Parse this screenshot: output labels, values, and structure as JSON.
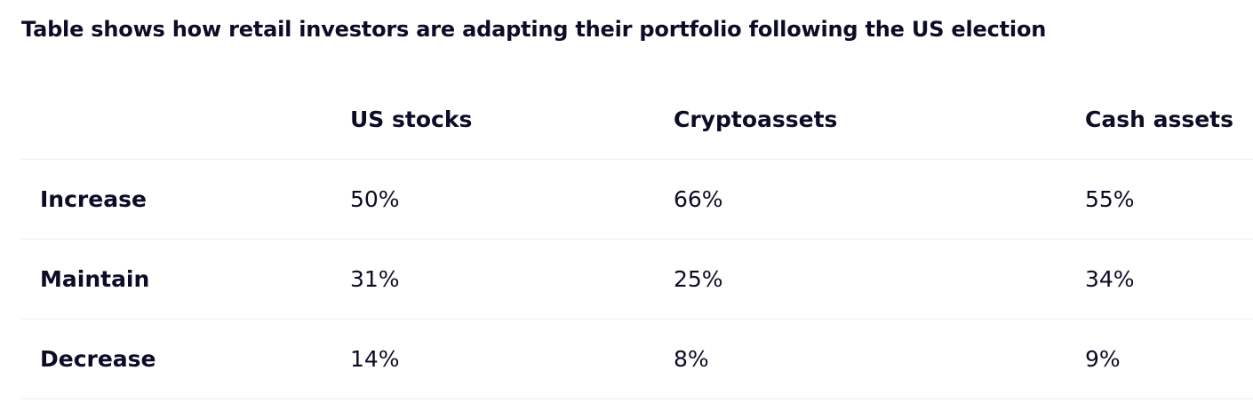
{
  "title": "Table shows how retail investors are adapting their portfolio following the US election",
  "table": {
    "columns": [
      "",
      "US stocks",
      "Cryptoassets",
      "Cash assets"
    ],
    "rows": [
      {
        "label": "Increase",
        "values": [
          "50%",
          "66%",
          "55%"
        ]
      },
      {
        "label": "Maintain",
        "values": [
          "31%",
          "25%",
          "34%"
        ]
      },
      {
        "label": "Decrease",
        "values": [
          "14%",
          "8%",
          "9%"
        ]
      }
    ]
  },
  "chart_data": {
    "type": "table",
    "title": "Table shows how retail investors are adapting their portfolio following the US election",
    "categories": [
      "Increase",
      "Maintain",
      "Decrease"
    ],
    "series": [
      {
        "name": "US stocks",
        "values": [
          50,
          31,
          14
        ]
      },
      {
        "name": "Cryptoassets",
        "values": [
          66,
          25,
          8
        ]
      },
      {
        "name": "Cash assets",
        "values": [
          55,
          34,
          9
        ]
      }
    ],
    "unit": "%"
  }
}
